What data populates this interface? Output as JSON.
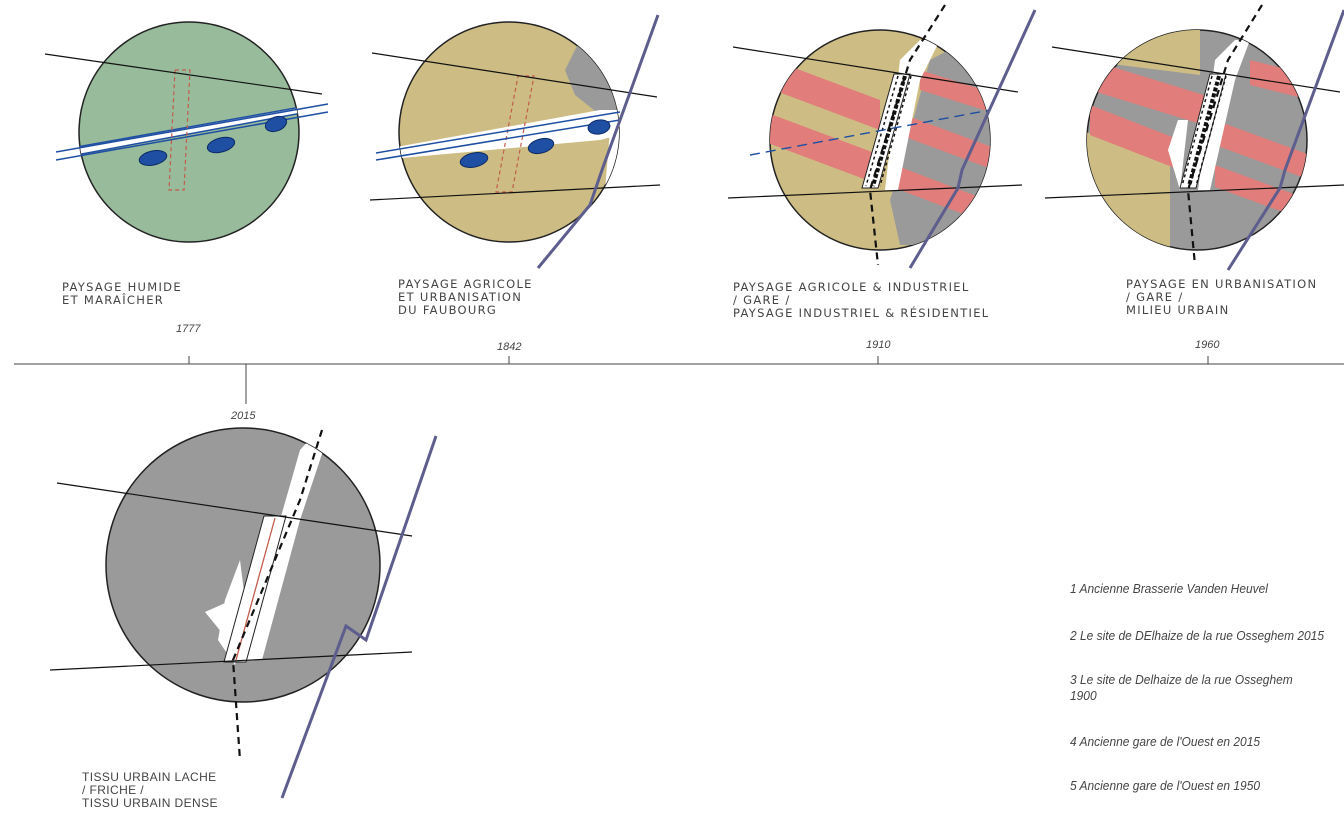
{
  "colors": {
    "wet_green": "#97bb9b",
    "agri_beige": "#cdbd84",
    "urban_grey": "#9a9a9a",
    "industry_red": "#e17d7a",
    "water_blue": "#1f4fa2",
    "rail_purple": "#5d5d8e",
    "outline": "#222222"
  },
  "timeline": {
    "stages": [
      {
        "year": "1777",
        "label": [
          "PAYSAGE HUMIDE",
          "ET MARAÎCHER"
        ]
      },
      {
        "year": "1842",
        "label": [
          "PAYSAGE AGRICOLE",
          "ET URBANISATION",
          "DU FAUBOURG"
        ]
      },
      {
        "year": "1910",
        "label": [
          "PAYSAGE AGRICOLE & INDUSTRIEL",
          "/ GARE /",
          "PAYSAGE INDUSTRIEL & RÉSIDENTIEL"
        ]
      },
      {
        "year": "1960",
        "label": [
          "PAYSAGE EN URBANISATION",
          "/ GARE /",
          "MILIEU URBAIN"
        ]
      },
      {
        "year": "2015",
        "label": [
          "TISSU URBAIN LACHE",
          "/ FRICHE /",
          "TISSU URBAIN DENSE"
        ]
      }
    ]
  },
  "legend": {
    "items": [
      "1 Ancienne Brasserie Vanden Heuvel",
      "2 Le site de DElhaize de la rue Osseghem 2015",
      "3 Le site de Delhaize de la rue Osseghem\n1900",
      "4 Ancienne gare de l'Ouest en 2015",
      "5 Ancienne gare de l'Ouest en 1950"
    ]
  }
}
